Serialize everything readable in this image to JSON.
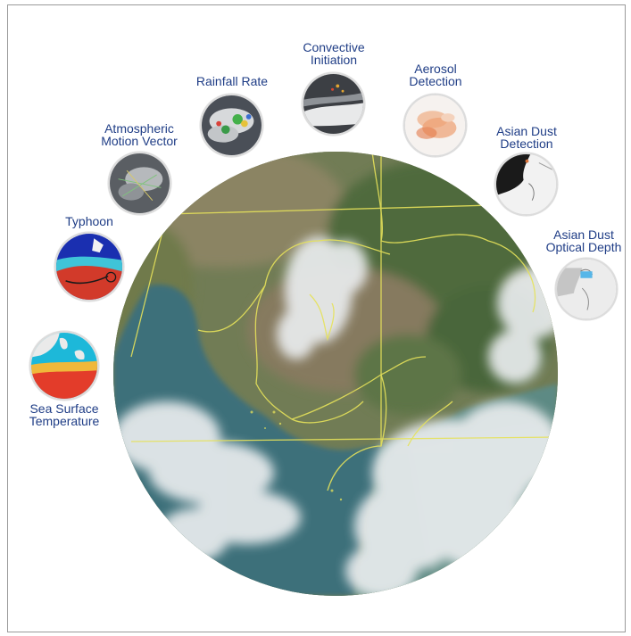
{
  "products": [
    {
      "key": "rainfall",
      "line1": "Rainfall Rate",
      "line2": ""
    },
    {
      "key": "convective",
      "line1": "Convective",
      "line2": "Initiation"
    },
    {
      "key": "aerosol",
      "line1": "Aerosol",
      "line2": "Detection"
    },
    {
      "key": "amv",
      "line1": "Atmospheric",
      "line2": "Motion Vector"
    },
    {
      "key": "dust",
      "line1": "Asian Dust",
      "line2": "Detection"
    },
    {
      "key": "typhoon",
      "line1": "Typhoon",
      "line2": ""
    },
    {
      "key": "aod",
      "line1": "Asian Dust",
      "line2": "Optical Depth"
    },
    {
      "key": "sst",
      "line1": "Sea Surface",
      "line2": "Temperature"
    }
  ],
  "colors": {
    "label": "#1f3d86",
    "border_lines": "#e6e25a",
    "land": "#6f7a52",
    "sea": "#3f7078",
    "cloud": "#e9ecee"
  }
}
